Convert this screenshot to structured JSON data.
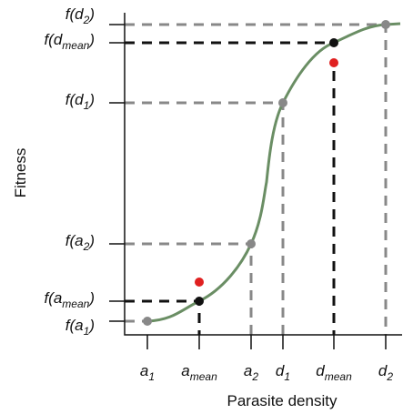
{
  "y_axis_label": "Fitness",
  "x_axis_label": "Parasite density",
  "x_ticks": [
    {
      "var": "a",
      "sub": "1"
    },
    {
      "var": "a",
      "sub": "mean"
    },
    {
      "var": "a",
      "sub": "2"
    },
    {
      "var": "d",
      "sub": "1"
    },
    {
      "var": "d",
      "sub": "mean"
    },
    {
      "var": "d",
      "sub": "2"
    }
  ],
  "y_ticks": [
    {
      "prefix": "f(",
      "var": "d",
      "sub": "2",
      "suffix": ")"
    },
    {
      "prefix": "f(",
      "var": "d",
      "sub": "mean",
      "suffix": ")"
    },
    {
      "prefix": "f(",
      "var": "d",
      "sub": "1",
      "suffix": ")"
    },
    {
      "prefix": "f(",
      "var": "a",
      "sub": "2",
      "suffix": ")"
    },
    {
      "prefix": "f(",
      "var": "a",
      "sub": "mean",
      "suffix": ")"
    },
    {
      "prefix": "f(",
      "var": "a",
      "sub": "1",
      "suffix": ")"
    }
  ]
}
